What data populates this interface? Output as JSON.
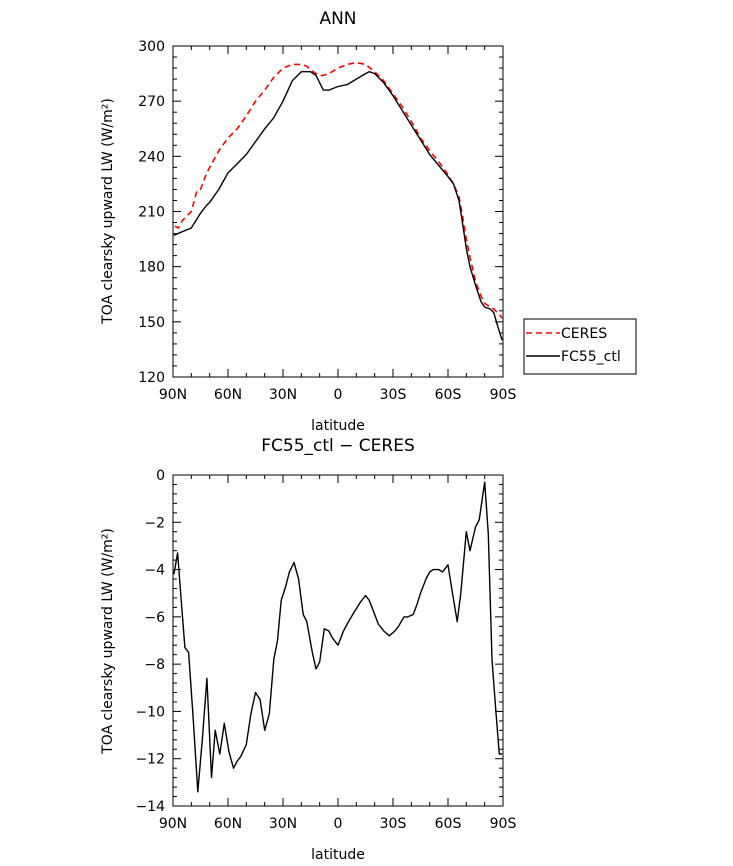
{
  "chart_data": [
    {
      "type": "line",
      "title": "ANN",
      "xlabel": "latitude",
      "ylabel": "TOA clearsky upward LW (W/m²)",
      "xlim": [
        90,
        -90
      ],
      "ylim": [
        120,
        300
      ],
      "x_ticks": [
        90,
        60,
        30,
        0,
        -30,
        -60,
        -90
      ],
      "x_tick_labels": [
        "90N",
        "60N",
        "30N",
        "0",
        "30S",
        "60S",
        "90S"
      ],
      "y_ticks": [
        120,
        150,
        180,
        210,
        240,
        270,
        300
      ],
      "y_tick_labels": [
        "120",
        "150",
        "180",
        "210",
        "240",
        "270",
        "300"
      ],
      "legend": {
        "position": "outside-right"
      },
      "series": [
        {
          "name": "CERES",
          "color": "#ff0000",
          "dash": "dashed",
          "x": [
            89,
            87,
            85,
            83,
            80,
            77,
            75,
            72,
            70,
            65,
            60,
            55,
            50,
            45,
            40,
            35,
            30,
            25,
            22,
            20,
            17,
            15,
            12,
            10,
            8,
            5,
            0,
            -5,
            -10,
            -15,
            -20,
            -25,
            -30,
            -35,
            -40,
            -45,
            -50,
            -55,
            -60,
            -63,
            -66,
            -68,
            -70,
            -72,
            -75,
            -78,
            -80,
            -83,
            -85,
            -88,
            -89.5
          ],
          "values": [
            202,
            201,
            205,
            207,
            210,
            221,
            222,
            230,
            234,
            243,
            250,
            255,
            262,
            270,
            276,
            283,
            288,
            290,
            290,
            290,
            289,
            287,
            285,
            284,
            284,
            285,
            288,
            290,
            291,
            290,
            286,
            281,
            274,
            267,
            259,
            250,
            243,
            237,
            230,
            225,
            218,
            207,
            195,
            185,
            172,
            164,
            160,
            158,
            157,
            154,
            152
          ]
        },
        {
          "name": "FC55_ctl",
          "color": "#000000",
          "dash": "solid",
          "x": [
            89.5,
            85,
            80,
            75,
            72,
            70,
            65,
            60,
            55,
            50,
            45,
            40,
            35,
            30,
            25,
            22,
            20,
            17,
            15,
            12,
            10,
            8,
            5,
            0,
            -5,
            -10,
            -15,
            -17,
            -20,
            -25,
            -30,
            -35,
            -40,
            -45,
            -50,
            -55,
            -60,
            -63,
            -66,
            -68,
            -70,
            -72,
            -75,
            -78,
            -80,
            -83,
            -85,
            -87,
            -89.5
          ],
          "values": [
            197,
            199,
            201,
            209,
            213,
            215,
            222,
            231,
            236,
            241,
            248,
            255,
            261,
            270,
            281,
            284,
            286,
            286,
            286,
            284,
            280,
            276,
            276,
            278,
            279,
            282,
            285,
            286,
            285,
            280,
            273,
            265,
            257,
            249,
            241,
            235,
            229,
            225,
            216,
            203,
            190,
            180,
            170,
            161,
            158,
            157,
            155,
            148,
            140
          ]
        }
      ]
    },
    {
      "type": "line",
      "title": "FC55_ctl − CERES",
      "xlabel": "latitude",
      "ylabel": "TOA clearsky upward LW (W/m²)",
      "xlim": [
        90,
        -90
      ],
      "ylim": [
        -14,
        0
      ],
      "x_ticks": [
        90,
        60,
        30,
        0,
        -30,
        -60,
        -90
      ],
      "x_tick_labels": [
        "90N",
        "60N",
        "30N",
        "0",
        "30S",
        "60S",
        "90S"
      ],
      "y_ticks": [
        -14,
        -12,
        -10,
        -8,
        -6,
        -4,
        -2,
        0
      ],
      "y_tick_labels": [
        "−14",
        "−12",
        "−10",
        "−8",
        "−6",
        "−4",
        "−2",
        "0"
      ],
      "series": [
        {
          "color": "#000000",
          "dash": "solid",
          "x": [
            89.5,
            87.5,
            86,
            83.5,
            81.5,
            79,
            76.5,
            74,
            71.5,
            69,
            67,
            64.5,
            62,
            59.5,
            57,
            55,
            53,
            50,
            47.5,
            45,
            42.5,
            40,
            37.5,
            35,
            33,
            31,
            28.5,
            26.5,
            24,
            21.5,
            19,
            17,
            14,
            12,
            10,
            7.5,
            5,
            3,
            0,
            -3,
            -5,
            -8,
            -12,
            -15,
            -17,
            -20,
            -22,
            -25,
            -28,
            -31,
            -33,
            -36,
            -38,
            -41,
            -43,
            -45,
            -48,
            -50,
            -52,
            -55,
            -57,
            -60,
            -62,
            -65,
            -67,
            -70,
            -72,
            -75,
            -77,
            -80,
            -82,
            -84,
            -86,
            -88,
            -89.5
          ],
          "values": [
            -4.2,
            -3.3,
            -4.8,
            -7.3,
            -7.5,
            -10.3,
            -13.4,
            -11.2,
            -8.6,
            -12.8,
            -10.8,
            -11.8,
            -10.5,
            -11.7,
            -12.4,
            -12.1,
            -11.9,
            -11.4,
            -10.1,
            -9.2,
            -9.5,
            -10.8,
            -10.1,
            -7.8,
            -7.0,
            -5.3,
            -4.7,
            -4.1,
            -3.7,
            -4.4,
            -5.9,
            -6.2,
            -7.5,
            -8.2,
            -7.9,
            -6.5,
            -6.6,
            -6.9,
            -7.2,
            -6.6,
            -6.3,
            -5.9,
            -5.4,
            -5.1,
            -5.3,
            -5.9,
            -6.3,
            -6.6,
            -6.8,
            -6.6,
            -6.4,
            -6.0,
            -6.0,
            -5.9,
            -5.5,
            -5.0,
            -4.4,
            -4.1,
            -4.0,
            -4.0,
            -4.1,
            -3.8,
            -4.8,
            -6.2,
            -5.0,
            -2.4,
            -3.2,
            -2.2,
            -1.9,
            -0.3,
            -2.5,
            -7.8,
            -9.9,
            -11.8,
            -11.8
          ]
        }
      ]
    }
  ]
}
